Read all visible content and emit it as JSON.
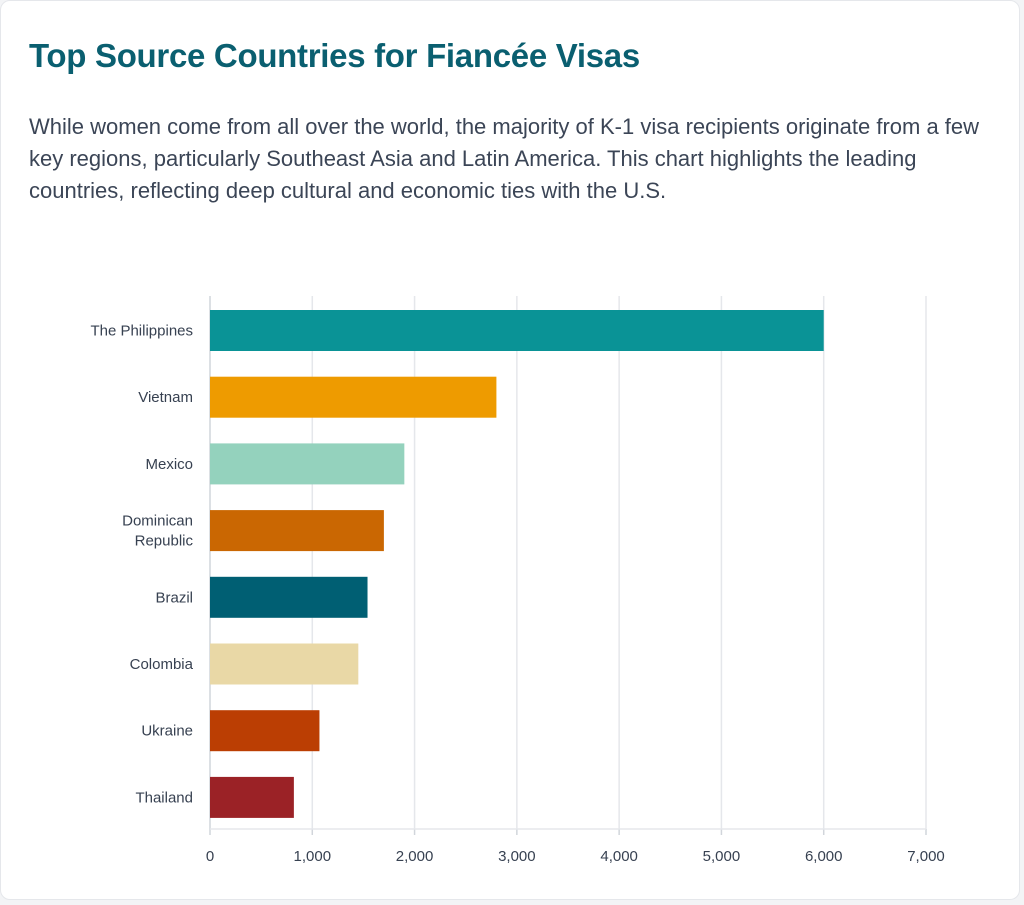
{
  "title": "Top Source Countries for Fiancée Visas",
  "description": "While women come from all over the world, the majority of K-1 visa recipients originate from a few key regions, particularly Southeast Asia and Latin America. This chart highlights the leading countries, reflecting deep cultural and economic ties with the U.S.",
  "chart_data": {
    "type": "bar",
    "orientation": "horizontal",
    "categories": [
      [
        "The Philippines"
      ],
      [
        "Vietnam"
      ],
      [
        "Mexico"
      ],
      [
        "Dominican",
        "Republic"
      ],
      [
        "Brazil"
      ],
      [
        "Colombia"
      ],
      [
        "Ukraine"
      ],
      [
        "Thailand"
      ]
    ],
    "values": [
      6000,
      2800,
      1900,
      1700,
      1540,
      1450,
      1070,
      820
    ],
    "colors": [
      "#0a9396",
      "#ee9b00",
      "#94d2bd",
      "#ca6702",
      "#005f73",
      "#e9d8a6",
      "#bb3e03",
      "#9b2226"
    ],
    "xlim": [
      0,
      7000
    ],
    "xticks": [
      0,
      1000,
      2000,
      3000,
      4000,
      5000,
      6000,
      7000
    ],
    "xtick_labels": [
      "0",
      "1,000",
      "2,000",
      "3,000",
      "4,000",
      "5,000",
      "6,000",
      "7,000"
    ],
    "grid": true,
    "legend": "none"
  }
}
